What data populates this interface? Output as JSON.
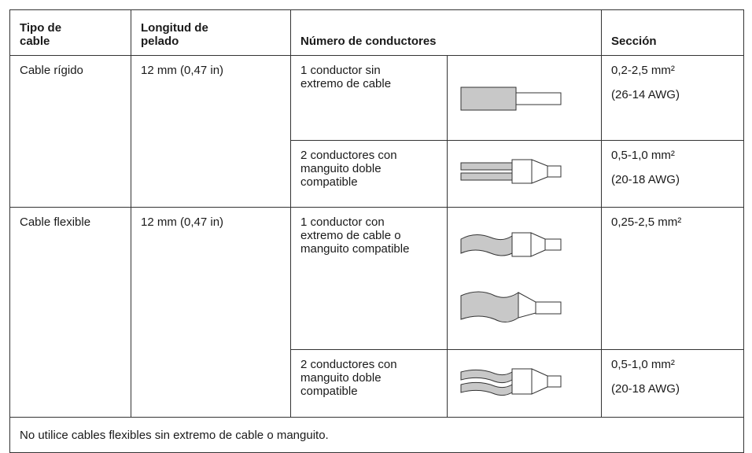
{
  "table": {
    "headers": [
      "Tipo de cable",
      "Longitud de pelado",
      "Número de conductores",
      "Sección"
    ],
    "rows": [
      {
        "cable_type": "Cable rígido",
        "strip_length": "12 mm (0,47 in)",
        "variants": [
          {
            "conductors": "1 conductor sin extremo de cable",
            "section": [
              "0,2-2,5 mm²",
              "(26-14 AWG)"
            ]
          },
          {
            "conductors": "2 conductores con manguito doble compatible",
            "section": [
              "0,5-1,0 mm²",
              "(20-18 AWG)"
            ]
          }
        ]
      },
      {
        "cable_type": "Cable flexible",
        "strip_length": "12 mm (0,47 in)",
        "variants": [
          {
            "conductors": "1 conductor con extremo de cable o manguito compatible",
            "section": [
              "0,25-2,5 mm²"
            ]
          },
          {
            "conductors": "2 conductores con manguito doble compatible",
            "section": [
              "0,5-1,0 mm²",
              "(20-18 AWG)"
            ]
          }
        ]
      }
    ],
    "note": "No utilice cables flexibles sin extremo de cable o manguito."
  }
}
